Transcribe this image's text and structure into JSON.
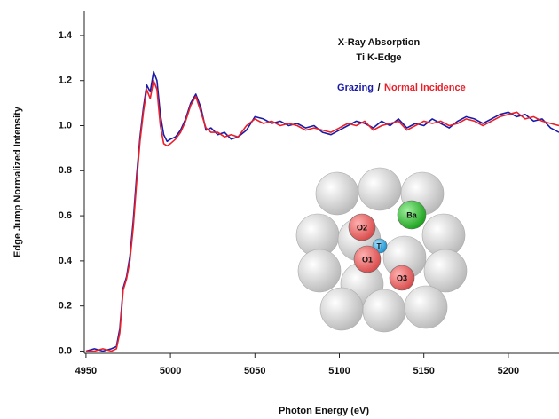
{
  "chart_data": {
    "type": "line",
    "annotations": [
      "X-Ray Absorption",
      "Ti K-Edge"
    ],
    "legend_separator": "/",
    "x_label": "Photon Energy (eV)",
    "y_label": "Edge Jump Normalized Intensity",
    "x": [
      4950,
      4955,
      4960,
      4965,
      4968,
      4970,
      4972,
      4974,
      4976,
      4978,
      4980,
      4982,
      4984,
      4986,
      4988,
      4990,
      4992,
      4994,
      4996,
      4998,
      5000,
      5003,
      5006,
      5009,
      5012,
      5015,
      5018,
      5021,
      5024,
      5028,
      5032,
      5036,
      5040,
      5045,
      5050,
      5055,
      5060,
      5065,
      5070,
      5075,
      5080,
      5085,
      5090,
      5095,
      5100,
      5105,
      5110,
      5115,
      5120,
      5125,
      5130,
      5135,
      5140,
      5145,
      5150,
      5155,
      5160,
      5165,
      5170,
      5175,
      5180,
      5185,
      5190,
      5195,
      5200,
      5205,
      5210,
      5215,
      5220,
      5225,
      5230
    ],
    "series": [
      {
        "name": "Grazing",
        "color": "#1a1aa8",
        "values": [
          0.0,
          0.01,
          0.0,
          0.01,
          0.02,
          0.1,
          0.28,
          0.33,
          0.42,
          0.58,
          0.78,
          0.95,
          1.08,
          1.18,
          1.15,
          1.24,
          1.2,
          1.05,
          0.96,
          0.93,
          0.94,
          0.95,
          0.98,
          1.03,
          1.1,
          1.14,
          1.08,
          0.98,
          0.99,
          0.96,
          0.97,
          0.94,
          0.95,
          0.98,
          1.04,
          1.03,
          1.01,
          1.02,
          1.0,
          1.01,
          0.99,
          1.0,
          0.97,
          0.96,
          0.98,
          1.0,
          1.02,
          1.01,
          0.99,
          1.02,
          1.0,
          1.03,
          0.99,
          1.01,
          1.0,
          1.03,
          1.01,
          0.99,
          1.02,
          1.04,
          1.03,
          1.01,
          1.03,
          1.05,
          1.06,
          1.04,
          1.05,
          1.02,
          1.03,
          0.99,
          0.97
        ]
      },
      {
        "name": "Normal Incidence",
        "color": "#e8202a",
        "values": [
          0.0,
          0.0,
          0.01,
          0.0,
          0.01,
          0.08,
          0.27,
          0.32,
          0.4,
          0.55,
          0.75,
          0.93,
          1.06,
          1.16,
          1.12,
          1.2,
          1.16,
          1.0,
          0.92,
          0.91,
          0.92,
          0.94,
          0.97,
          1.02,
          1.09,
          1.13,
          1.06,
          0.99,
          0.97,
          0.97,
          0.95,
          0.96,
          0.95,
          1.0,
          1.03,
          1.01,
          1.02,
          1.0,
          1.01,
          1.0,
          0.98,
          0.99,
          0.98,
          0.97,
          0.99,
          1.01,
          1.0,
          1.02,
          0.98,
          1.0,
          1.01,
          1.02,
          0.98,
          1.0,
          1.02,
          1.01,
          1.02,
          1.0,
          1.01,
          1.03,
          1.02,
          1.0,
          1.02,
          1.04,
          1.05,
          1.06,
          1.03,
          1.04,
          1.02,
          1.01,
          1.0
        ]
      }
    ],
    "xlim": [
      4949,
      5230
    ],
    "xticks": [
      4950,
      5000,
      5050,
      5100,
      5150,
      5200
    ],
    "ylim": [
      -0.01,
      1.51
    ],
    "yticks": [
      {
        "value": 0,
        "label": "0.0"
      },
      0.2,
      0.4,
      0.6,
      0.8,
      {
        "value": 1,
        "label": "1.0"
      },
      1.2,
      1.4
    ],
    "grid": false,
    "inset_labels": [
      "Ba",
      "O2",
      "Ti",
      "O1",
      "O3"
    ]
  }
}
